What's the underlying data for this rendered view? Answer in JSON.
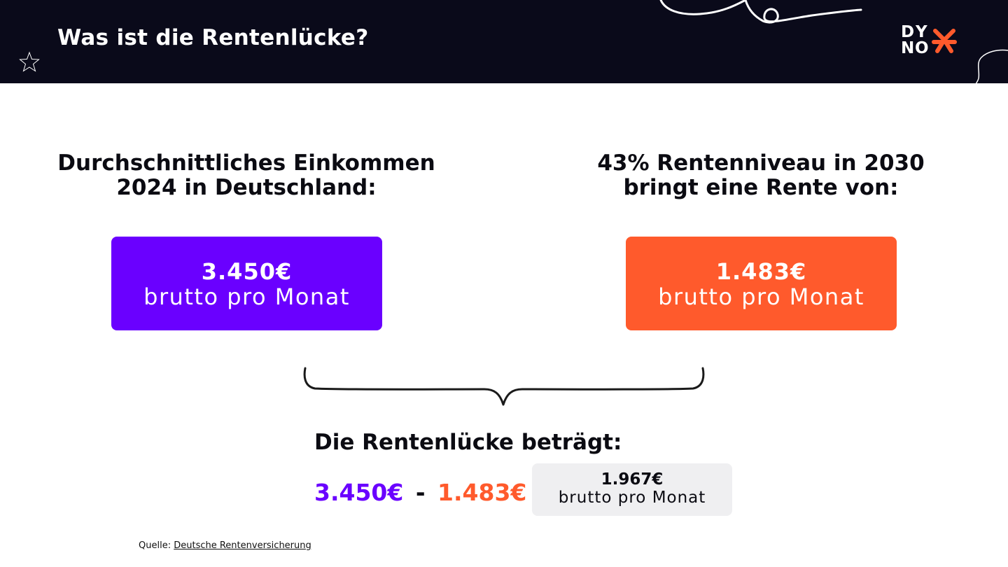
{
  "header": {
    "title": "Was ist die Rentenlücke?",
    "logo": {
      "letters": [
        "D",
        "Y",
        "N",
        "O"
      ],
      "mark_color": "#ff5a2c"
    }
  },
  "left": {
    "heading_line1": "Durchschnittliches Einkommen",
    "heading_line2": "2024 in Deutschland:",
    "amount": "3.450€",
    "unit": "brutto pro Monat",
    "color": "#6a00ff"
  },
  "right": {
    "heading_line1": "43% Rentenniveau in 2030",
    "heading_line2": "bringt eine Rente von:",
    "amount": "1.483€",
    "unit": "brutto pro Monat",
    "color": "#ff5a2c"
  },
  "gap": {
    "heading": "Die Rentenlücke beträgt:",
    "term1": "3.450€",
    "minus": "-",
    "term2": "1.483€",
    "equals": "=",
    "result_amount": "1.967€",
    "result_unit": "brutto pro Monat"
  },
  "source": {
    "label": "Quelle:",
    "link_text": "Deutsche Rentenversicherung"
  },
  "icons": [
    "star-outline-icon",
    "curly-brace-icon"
  ]
}
